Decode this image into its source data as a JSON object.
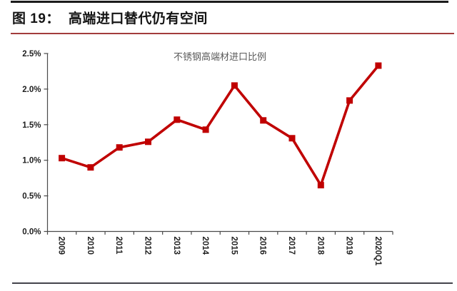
{
  "header": {
    "figure_no": "图 19：",
    "figure_title": "高端进口替代仍有空间"
  },
  "chart_data": {
    "type": "line",
    "title": "不锈钢高端材进口比例",
    "categories": [
      "2009",
      "2010",
      "2011",
      "2012",
      "2013",
      "2014",
      "2015",
      "2016",
      "2017",
      "2018",
      "2019",
      "2020Q1"
    ],
    "series": [
      {
        "name": "不锈钢高端材进口比例",
        "values": [
          1.03,
          0.9,
          1.18,
          1.26,
          1.57,
          1.43,
          2.05,
          1.56,
          1.31,
          0.65,
          1.84,
          2.33
        ]
      }
    ],
    "unit": "%",
    "ylim": [
      0,
      2.5
    ],
    "ytick_labels": [
      "0.0%",
      "0.5%",
      "1.0%",
      "1.5%",
      "2.0%",
      "2.5%"
    ],
    "xlabel": "",
    "ylabel": "",
    "grid": false,
    "legend": "none",
    "marker": "square",
    "x_labels_rotated_deg": 90
  },
  "style": {
    "line_color": "#C00000",
    "marker_color": "#C00000",
    "top_rule_color": "#1B1B1B",
    "title_rule_color": "#A23C3C",
    "bottom_rule_color": "#43434B",
    "axis_color": "#4A4A4A",
    "tick_label_color": "#1F1F1F",
    "chart_title_color": "#595959"
  }
}
